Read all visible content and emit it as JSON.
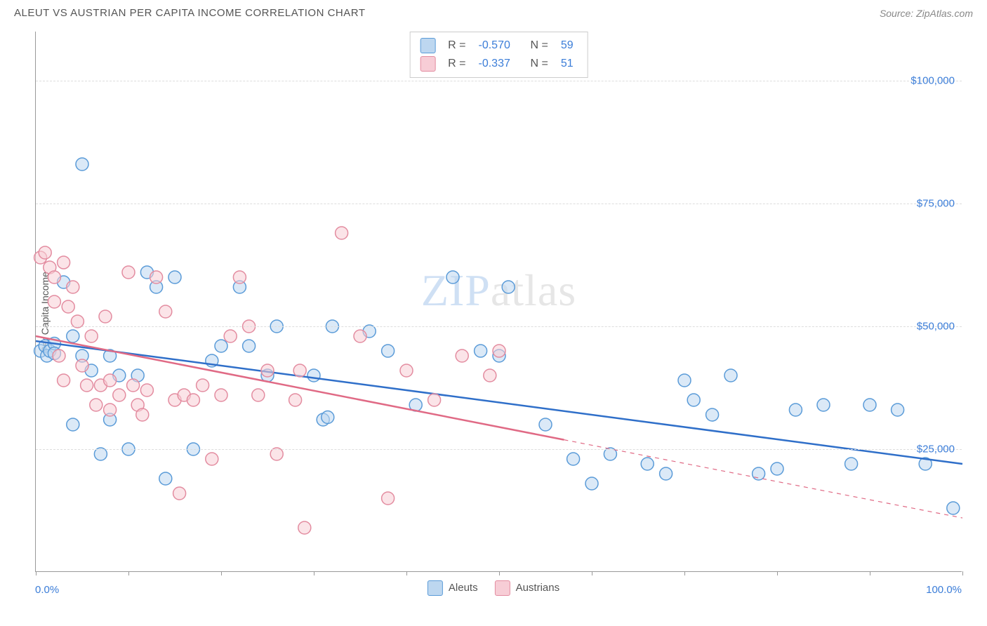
{
  "header": {
    "title": "ALEUT VS AUSTRIAN PER CAPITA INCOME CORRELATION CHART",
    "source_prefix": "Source: ",
    "source_name": "ZipAtlas.com"
  },
  "watermark": {
    "part1": "ZIP",
    "part2": "atlas"
  },
  "chart": {
    "type": "scatter",
    "ylabel": "Per Capita Income",
    "xlim": [
      0,
      100
    ],
    "ylim": [
      0,
      110000
    ],
    "y_gridlines": [
      25000,
      50000,
      75000,
      100000
    ],
    "y_tick_labels": [
      "$25,000",
      "$50,000",
      "$75,000",
      "$100,000"
    ],
    "x_ticks": [
      0,
      10,
      20,
      30,
      40,
      50,
      60,
      70,
      80,
      90,
      100
    ],
    "x_min_label": "0.0%",
    "x_max_label": "100.0%",
    "grid_color": "#dddddd",
    "background_color": "#ffffff",
    "marker_radius": 9,
    "marker_stroke_width": 1.5,
    "marker_fill_opacity": 0.55,
    "trend_line_width": 2.5,
    "series": [
      {
        "key": "aleuts",
        "label": "Aleuts",
        "color_fill": "#bdd7f0",
        "color_stroke": "#5a9bd8",
        "trend_color": "#2f6fc9",
        "stats": {
          "R": "-0.570",
          "N": "59"
        },
        "trend": {
          "x1": 0,
          "y1": 47000,
          "x2": 100,
          "y2": 22000,
          "solid_until_x": 100
        },
        "points": [
          [
            0.5,
            45000
          ],
          [
            1,
            46000
          ],
          [
            1.2,
            44000
          ],
          [
            1.5,
            45000
          ],
          [
            2,
            46500
          ],
          [
            2,
            44500
          ],
          [
            5,
            83000
          ],
          [
            3,
            59000
          ],
          [
            4,
            30000
          ],
          [
            4,
            48000
          ],
          [
            5,
            44000
          ],
          [
            6,
            41000
          ],
          [
            7,
            24000
          ],
          [
            8,
            31000
          ],
          [
            8,
            44000
          ],
          [
            9,
            40000
          ],
          [
            10,
            25000
          ],
          [
            11,
            40000
          ],
          [
            12,
            61000
          ],
          [
            13,
            58000
          ],
          [
            14,
            19000
          ],
          [
            15,
            60000
          ],
          [
            17,
            25000
          ],
          [
            19,
            43000
          ],
          [
            20,
            46000
          ],
          [
            22,
            58000
          ],
          [
            23,
            46000
          ],
          [
            25,
            40000
          ],
          [
            26,
            50000
          ],
          [
            30,
            40000
          ],
          [
            31,
            31000
          ],
          [
            31.5,
            31500
          ],
          [
            32,
            50000
          ],
          [
            36,
            49000
          ],
          [
            38,
            45000
          ],
          [
            41,
            34000
          ],
          [
            45,
            60000
          ],
          [
            48,
            45000
          ],
          [
            50,
            44000
          ],
          [
            51,
            58000
          ],
          [
            55,
            30000
          ],
          [
            58,
            23000
          ],
          [
            60,
            18000
          ],
          [
            62,
            24000
          ],
          [
            66,
            22000
          ],
          [
            68,
            20000
          ],
          [
            70,
            39000
          ],
          [
            71,
            35000
          ],
          [
            73,
            32000
          ],
          [
            75,
            40000
          ],
          [
            78,
            20000
          ],
          [
            80,
            21000
          ],
          [
            82,
            33000
          ],
          [
            85,
            34000
          ],
          [
            88,
            22000
          ],
          [
            90,
            34000
          ],
          [
            93,
            33000
          ],
          [
            96,
            22000
          ],
          [
            99,
            13000
          ]
        ]
      },
      {
        "key": "austrians",
        "label": "Austrians",
        "color_fill": "#f7cdd6",
        "color_stroke": "#e38ca0",
        "trend_color": "#e06a85",
        "stats": {
          "R": "-0.337",
          "N": "51"
        },
        "trend": {
          "x1": 0,
          "y1": 48000,
          "x2": 100,
          "y2": 11000,
          "solid_until_x": 57
        },
        "points": [
          [
            0.5,
            64000
          ],
          [
            1,
            65000
          ],
          [
            1.5,
            62000
          ],
          [
            2,
            60000
          ],
          [
            2,
            55000
          ],
          [
            2.5,
            44000
          ],
          [
            3,
            39000
          ],
          [
            3,
            63000
          ],
          [
            3.5,
            54000
          ],
          [
            4,
            58000
          ],
          [
            4.5,
            51000
          ],
          [
            5,
            42000
          ],
          [
            5.5,
            38000
          ],
          [
            6,
            48000
          ],
          [
            6.5,
            34000
          ],
          [
            7,
            38000
          ],
          [
            7.5,
            52000
          ],
          [
            8,
            39000
          ],
          [
            8,
            33000
          ],
          [
            9,
            36000
          ],
          [
            10,
            61000
          ],
          [
            10.5,
            38000
          ],
          [
            11,
            34000
          ],
          [
            11.5,
            32000
          ],
          [
            12,
            37000
          ],
          [
            13,
            60000
          ],
          [
            14,
            53000
          ],
          [
            15,
            35000
          ],
          [
            15.5,
            16000
          ],
          [
            16,
            36000
          ],
          [
            17,
            35000
          ],
          [
            18,
            38000
          ],
          [
            19,
            23000
          ],
          [
            20,
            36000
          ],
          [
            21,
            48000
          ],
          [
            22,
            60000
          ],
          [
            23,
            50000
          ],
          [
            24,
            36000
          ],
          [
            25,
            41000
          ],
          [
            26,
            24000
          ],
          [
            28,
            35000
          ],
          [
            28.5,
            41000
          ],
          [
            29,
            9000
          ],
          [
            33,
            69000
          ],
          [
            35,
            48000
          ],
          [
            38,
            15000
          ],
          [
            40,
            41000
          ],
          [
            43,
            35000
          ],
          [
            46,
            44000
          ],
          [
            49,
            40000
          ],
          [
            50,
            45000
          ]
        ]
      }
    ],
    "legend_stats_labels": {
      "R": "R =",
      "N": "N ="
    }
  }
}
